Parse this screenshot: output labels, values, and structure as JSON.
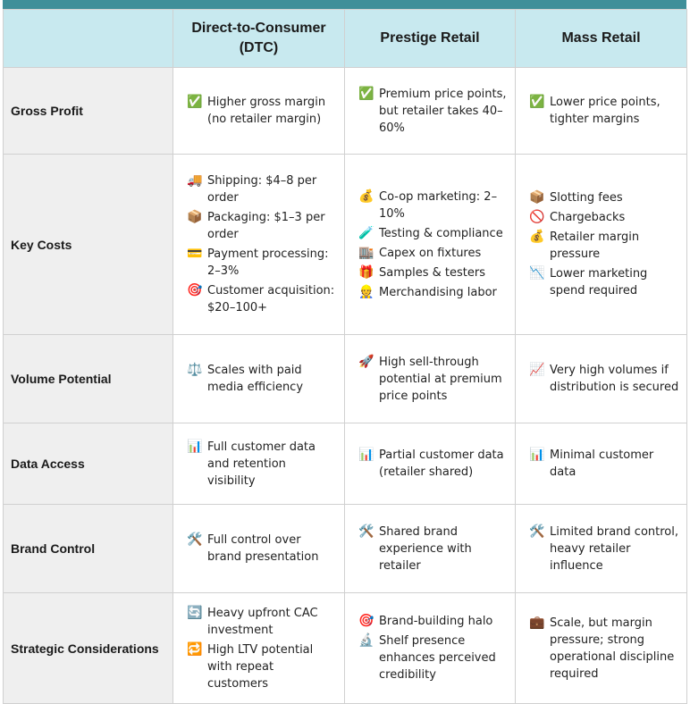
{
  "header": {
    "col_dtc": "Direct-to-Consumer (DTC)",
    "col_prestige": "Prestige Retail",
    "col_mass": "Mass Retail"
  },
  "rows": [
    {
      "label": "Gross Profit",
      "dtc": [
        {
          "icon": "✅",
          "icon_name": "check-icon",
          "text": "Higher gross margin (no retailer margin)"
        }
      ],
      "prestige": [
        {
          "icon": "✅",
          "icon_name": "check-icon",
          "text": "Premium price points, but retailer takes 40–60%"
        }
      ],
      "mass": [
        {
          "icon": "✅",
          "icon_name": "check-icon",
          "text": "Lower price points, tighter margins"
        }
      ]
    },
    {
      "label": "Key Costs",
      "dtc": [
        {
          "icon": "🚚",
          "icon_name": "truck-icon",
          "text": "Shipping: $4–8 per order"
        },
        {
          "icon": "📦",
          "icon_name": "package-icon",
          "text": "Packaging: $1–3 per order"
        },
        {
          "icon": "💳",
          "icon_name": "credit-card-icon",
          "text": "Payment processing: 2–3%"
        },
        {
          "icon": "🎯",
          "icon_name": "target-icon",
          "text": "Customer acquisition: $20–100+"
        }
      ],
      "prestige": [
        {
          "icon": "💰",
          "icon_name": "money-bag-icon",
          "text": "Co-op marketing: 2–10%"
        },
        {
          "icon": "🧪",
          "icon_name": "test-tube-icon",
          "text": "Testing & compliance"
        },
        {
          "icon": "🏬",
          "icon_name": "store-icon",
          "text": "Capex on fixtures"
        },
        {
          "icon": "🎁",
          "icon_name": "gift-icon",
          "text": "Samples & testers"
        },
        {
          "icon": "👷",
          "icon_name": "worker-icon",
          "text": "Merchandising labor"
        }
      ],
      "mass": [
        {
          "icon": "📦",
          "icon_name": "package-icon",
          "text": "Slotting fees"
        },
        {
          "icon": "🚫",
          "icon_name": "prohibited-icon",
          "text": "Chargebacks"
        },
        {
          "icon": "💰",
          "icon_name": "money-bag-icon",
          "text": "Retailer margin pressure"
        },
        {
          "icon": "📉",
          "icon_name": "chart-down-icon",
          "text": "Lower marketing spend required"
        }
      ]
    },
    {
      "label": "Volume Potential",
      "dtc": [
        {
          "icon": "⚖️",
          "icon_name": "scales-icon",
          "text": "Scales with paid media efficiency"
        }
      ],
      "prestige": [
        {
          "icon": "🚀",
          "icon_name": "rocket-icon",
          "text": "High sell-through potential at premium price points"
        }
      ],
      "mass": [
        {
          "icon": "📈",
          "icon_name": "chart-up-icon",
          "text": "Very high volumes if distribution is secured"
        }
      ]
    },
    {
      "label": "Data Access",
      "dtc": [
        {
          "icon": "📊",
          "icon_name": "bar-chart-icon",
          "text": "Full customer data and retention visibility"
        }
      ],
      "prestige": [
        {
          "icon": "📊",
          "icon_name": "bar-chart-icon",
          "text": "Partial customer data (retailer shared)"
        }
      ],
      "mass": [
        {
          "icon": "📊",
          "icon_name": "bar-chart-icon",
          "text": "Minimal customer data"
        }
      ]
    },
    {
      "label": "Brand Control",
      "dtc": [
        {
          "icon": "🛠️",
          "icon_name": "tools-icon",
          "text": "Full control over brand presentation"
        }
      ],
      "prestige": [
        {
          "icon": "🛠️",
          "icon_name": "tools-icon",
          "text": "Shared brand experience with retailer"
        }
      ],
      "mass": [
        {
          "icon": "🛠️",
          "icon_name": "tools-icon",
          "text": "Limited brand control, heavy retailer influence"
        }
      ]
    },
    {
      "label": "Strategic Considerations",
      "dtc": [
        {
          "icon": "🔄",
          "icon_name": "cycle-arrows-icon",
          "text": "Heavy upfront CAC investment"
        },
        {
          "icon": "🔁",
          "icon_name": "repeat-icon",
          "text": "High LTV potential with repeat customers"
        }
      ],
      "prestige": [
        {
          "icon": "🎯",
          "icon_name": "target-icon",
          "text": "Brand-building halo"
        },
        {
          "icon": "🔬",
          "icon_name": "microscope-icon",
          "text": "Shelf presence enhances perceived credibility"
        }
      ],
      "mass": [
        {
          "icon": "💼",
          "icon_name": "briefcase-icon",
          "text": "Scale, but margin pressure; strong operational discipline required"
        }
      ]
    }
  ]
}
